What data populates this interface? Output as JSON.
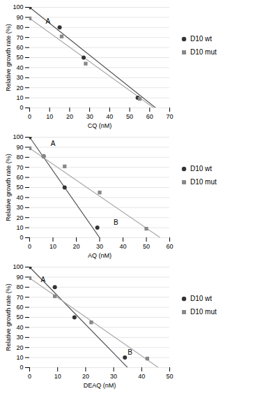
{
  "chart_data": [
    {
      "type": "scatter",
      "xlabel": "CQ (nM)",
      "ylabel": "Relative growth rate (%)",
      "xlim": [
        0,
        70
      ],
      "xticks": [
        0,
        10,
        20,
        30,
        40,
        50,
        60,
        70
      ],
      "ylim": [
        0,
        100
      ],
      "yticks": [
        0,
        10,
        20,
        30,
        40,
        50,
        60,
        70,
        80,
        90,
        100
      ],
      "grid": true,
      "legend": "right",
      "series": [
        {
          "name": "D10 wt",
          "type": "scatter",
          "marker": "circle",
          "color": "#333333",
          "x": [
            0,
            15,
            27,
            54
          ],
          "values": [
            100,
            80,
            50,
            10
          ]
        },
        {
          "name": "D10 mut",
          "type": "scatter",
          "marker": "square",
          "color": "#888888",
          "x": [
            0,
            16,
            28,
            55
          ],
          "values": [
            89,
            71,
            44,
            9
          ]
        },
        {
          "type": "line",
          "color": "#555555",
          "x": [
            0,
            63
          ],
          "values": [
            100,
            0
          ]
        },
        {
          "type": "line",
          "color": "#aaaaaa",
          "x": [
            0,
            62
          ],
          "values": [
            89,
            0
          ]
        }
      ],
      "annotations": [
        {
          "text": "A",
          "x": 8,
          "y": 84
        }
      ]
    },
    {
      "type": "scatter",
      "xlabel": "AQ (nM)",
      "ylabel": "Relative growth rate (%)",
      "xlim": [
        0,
        60
      ],
      "xticks": [
        0,
        10,
        20,
        30,
        40,
        50,
        60
      ],
      "ylim": [
        0,
        100
      ],
      "yticks": [
        0,
        10,
        20,
        30,
        40,
        50,
        60,
        70,
        80,
        90,
        100
      ],
      "grid": true,
      "legend": "right",
      "series": [
        {
          "name": "D10 wt",
          "type": "scatter",
          "marker": "circle",
          "color": "#333333",
          "x": [
            0,
            6,
            15,
            29
          ],
          "values": [
            100,
            81,
            50,
            10
          ]
        },
        {
          "name": "D10 mut",
          "type": "scatter",
          "marker": "square",
          "color": "#888888",
          "x": [
            0,
            6,
            15,
            30,
            50
          ],
          "values": [
            89,
            81,
            71,
            45,
            9
          ]
        },
        {
          "type": "line",
          "color": "#555555",
          "x": [
            0,
            30
          ],
          "values": [
            100,
            0
          ]
        },
        {
          "type": "line",
          "color": "#aaaaaa",
          "x": [
            0,
            56
          ],
          "values": [
            89,
            0
          ]
        }
      ],
      "annotations": [
        {
          "text": "A",
          "x": 9,
          "y": 91
        },
        {
          "text": "B",
          "x": 36,
          "y": 13
        }
      ]
    },
    {
      "type": "scatter",
      "xlabel": "DEAQ (nM)",
      "ylabel": "Relative growth rate (%)",
      "xlim": [
        0,
        50
      ],
      "xticks": [
        0,
        10,
        20,
        30,
        40,
        50
      ],
      "ylim": [
        0,
        100
      ],
      "yticks": [
        0,
        10,
        20,
        30,
        40,
        50,
        60,
        70,
        80,
        90,
        100
      ],
      "grid": true,
      "legend": "right",
      "series": [
        {
          "name": "D10 wt",
          "type": "scatter",
          "marker": "circle",
          "color": "#333333",
          "x": [
            0,
            9,
            16,
            34
          ],
          "values": [
            100,
            80,
            50,
            10
          ]
        },
        {
          "name": "D10 mut",
          "type": "scatter",
          "marker": "square",
          "color": "#888888",
          "x": [
            0,
            9,
            22,
            42
          ],
          "values": [
            89,
            71,
            45,
            9
          ]
        },
        {
          "type": "line",
          "color": "#555555",
          "x": [
            0,
            35
          ],
          "values": [
            100,
            0
          ]
        },
        {
          "type": "line",
          "color": "#aaaaaa",
          "x": [
            0,
            46
          ],
          "values": [
            89,
            0
          ]
        }
      ],
      "annotations": [
        {
          "text": "A",
          "x": 4,
          "y": 85
        },
        {
          "text": "B",
          "x": 35,
          "y": 13
        }
      ]
    }
  ]
}
